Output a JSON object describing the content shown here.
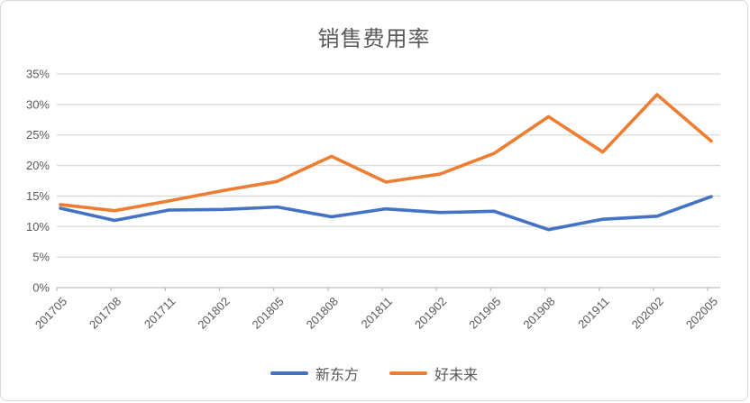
{
  "chart_data": {
    "type": "line",
    "title": "销售费用率",
    "categories": [
      "201705",
      "201708",
      "201711",
      "201802",
      "201805",
      "201808",
      "201811",
      "201902",
      "201905",
      "201908",
      "201911",
      "202002",
      "202005"
    ],
    "series": [
      {
        "name": "新东方",
        "color": "#4472C4",
        "values": [
          13.0,
          11.0,
          12.7,
          12.8,
          13.2,
          11.6,
          12.9,
          12.3,
          12.5,
          9.5,
          11.2,
          11.7,
          14.9
        ]
      },
      {
        "name": "好未来",
        "color": "#ED7D31",
        "values": [
          13.6,
          12.6,
          14.2,
          15.9,
          17.4,
          21.5,
          17.3,
          18.6,
          22.0,
          28.0,
          22.2,
          31.6,
          24.0
        ]
      }
    ],
    "xlabel": "",
    "ylabel": "",
    "ylim": [
      0,
      35
    ],
    "ytick_step": 5,
    "ytick_labels": [
      "0%",
      "5%",
      "10%",
      "15%",
      "20%",
      "25%",
      "30%",
      "35%"
    ],
    "grid": true,
    "legend_position": "bottom",
    "x_labels_rotated_degrees": 45
  },
  "colors": {
    "background": "#ffffff",
    "card_border": "#d9d9d9",
    "gridline": "#d9d9d9",
    "axis_line": "#bfbfbf",
    "tick_text": "#595959",
    "title_text": "#595959",
    "legend_text": "#595959",
    "series_blue": "#4472C4",
    "series_orange": "#ED7D31"
  }
}
